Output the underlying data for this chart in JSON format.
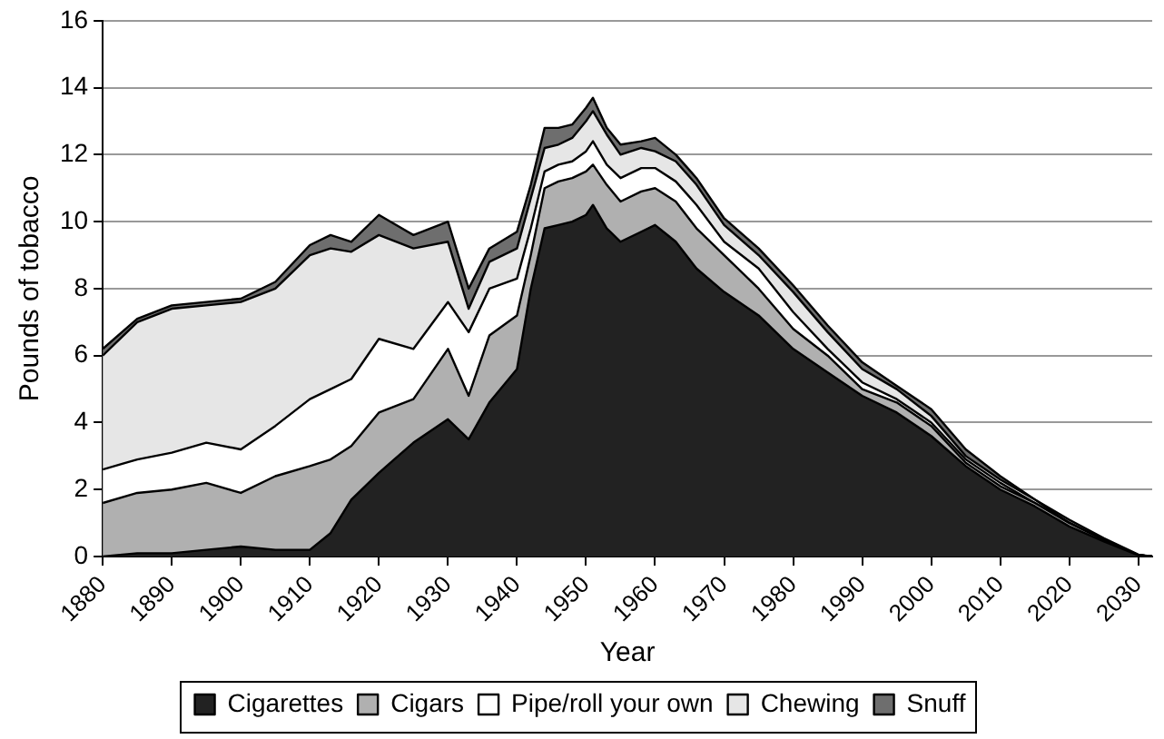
{
  "chart_data": {
    "type": "area",
    "stacked": true,
    "xlabel": "Year",
    "ylabel": "Pounds of tobacco",
    "xlim": [
      1880,
      2032
    ],
    "xticks": [
      1880,
      1890,
      1900,
      1910,
      1920,
      1930,
      1940,
      1950,
      1960,
      1970,
      1980,
      1990,
      2000,
      2010,
      2020,
      2030
    ],
    "ylim": [
      0,
      16
    ],
    "yticks": [
      0,
      2,
      4,
      6,
      8,
      10,
      12,
      14,
      16
    ],
    "grid": "y",
    "legend": "bottom",
    "x": [
      1880,
      1885,
      1890,
      1895,
      1900,
      1905,
      1910,
      1913,
      1916,
      1920,
      1925,
      1930,
      1933,
      1936,
      1940,
      1942,
      1944,
      1946,
      1948,
      1950,
      1951,
      1953,
      1955,
      1958,
      1960,
      1963,
      1966,
      1970,
      1975,
      1980,
      1985,
      1990,
      1995,
      2000,
      2005,
      2010,
      2015,
      2020,
      2025,
      2030,
      2032
    ],
    "series": [
      {
        "name": "Cigarettes",
        "color": "#222222",
        "values": [
          0,
          0.1,
          0.1,
          0.2,
          0.3,
          0.2,
          0.2,
          0.7,
          1.7,
          2.5,
          3.4,
          4.1,
          3.5,
          4.6,
          5.6,
          8.0,
          9.8,
          9.9,
          10.0,
          10.2,
          10.5,
          9.8,
          9.4,
          9.7,
          9.9,
          9.4,
          8.6,
          7.9,
          7.2,
          6.2,
          5.5,
          4.8,
          4.3,
          3.6,
          2.7,
          2.0,
          1.5,
          0.9,
          0.45,
          0.04,
          0
        ]
      },
      {
        "name": "Cigars",
        "color": "#b0b0b0",
        "values": [
          1.6,
          1.8,
          1.9,
          2.0,
          1.6,
          2.2,
          2.5,
          2.2,
          1.6,
          1.8,
          1.3,
          2.1,
          1.3,
          2.0,
          1.6,
          1.0,
          1.2,
          1.3,
          1.3,
          1.3,
          1.2,
          1.3,
          1.2,
          1.2,
          1.1,
          1.2,
          1.2,
          1.1,
          0.8,
          0.6,
          0.5,
          0.2,
          0.3,
          0.3,
          0.1,
          0.1,
          0.1,
          0.1,
          0.05,
          0,
          0
        ]
      },
      {
        "name": "Pipe/roll your own",
        "color": "#ffffff",
        "values": [
          1.0,
          1.0,
          1.1,
          1.2,
          1.3,
          1.5,
          2.0,
          2.1,
          2.0,
          2.2,
          1.5,
          1.4,
          1.9,
          1.4,
          1.1,
          0.8,
          0.5,
          0.5,
          0.5,
          0.6,
          0.7,
          0.6,
          0.7,
          0.7,
          0.6,
          0.6,
          0.7,
          0.4,
          0.6,
          0.5,
          0.2,
          0.2,
          0.1,
          0.1,
          0.1,
          0.1,
          0,
          0,
          0,
          0,
          0
        ]
      },
      {
        "name": "Chewing",
        "color": "#e6e6e6",
        "values": [
          3.4,
          4.1,
          4.3,
          4.1,
          4.4,
          4.1,
          4.3,
          4.2,
          3.8,
          3.1,
          3.0,
          1.8,
          0.7,
          0.8,
          0.9,
          0.9,
          0.7,
          0.6,
          0.7,
          0.9,
          0.9,
          0.9,
          0.7,
          0.6,
          0.5,
          0.6,
          0.6,
          0.5,
          0.4,
          0.6,
          0.5,
          0.4,
          0.3,
          0.2,
          0.1,
          0.1,
          0.1,
          0,
          0,
          0,
          0
        ]
      },
      {
        "name": "Snuff",
        "color": "#6e6e6e",
        "values": [
          0.2,
          0.1,
          0.1,
          0.1,
          0.1,
          0.2,
          0.3,
          0.4,
          0.3,
          0.6,
          0.4,
          0.6,
          0.6,
          0.4,
          0.5,
          0.4,
          0.6,
          0.5,
          0.4,
          0.4,
          0.4,
          0.2,
          0.3,
          0.2,
          0.4,
          0.2,
          0.2,
          0.2,
          0.2,
          0.2,
          0.2,
          0.2,
          0.1,
          0.2,
          0.2,
          0.1,
          0,
          0.1,
          0.05,
          0.02,
          0
        ]
      }
    ]
  }
}
